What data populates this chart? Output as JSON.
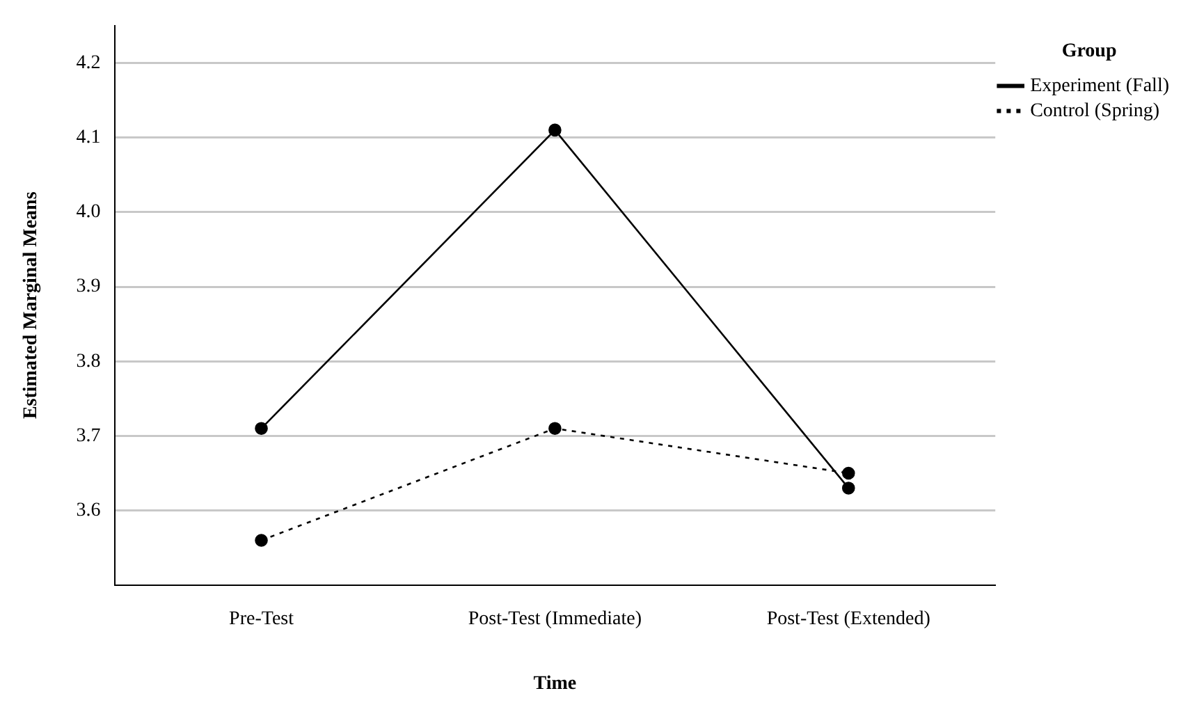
{
  "chart_data": {
    "type": "line",
    "xlabel": "Time",
    "ylabel": "Estimated Marginal Means",
    "legend_title": "Group",
    "categories": [
      "Pre-Test",
      "Post-Test (Immediate)",
      "Post-Test (Extended)"
    ],
    "series": [
      {
        "name": "Experiment (Fall)",
        "color": "#000000",
        "values": [
          3.71,
          4.11,
          3.63
        ],
        "line_style": "solid"
      },
      {
        "name": "Control (Spring)",
        "color": "#000000",
        "values": [
          3.56,
          3.71,
          3.65
        ],
        "line_style": "dotted"
      }
    ],
    "ylim": [
      3.5,
      4.25
    ],
    "yticks": [
      3.6,
      3.7,
      3.8,
      3.9,
      {
        "value": 4,
        "label": "4.0"
      },
      4.1,
      4.2
    ],
    "grid": "y",
    "legend": "top right",
    "marker": "circle"
  }
}
